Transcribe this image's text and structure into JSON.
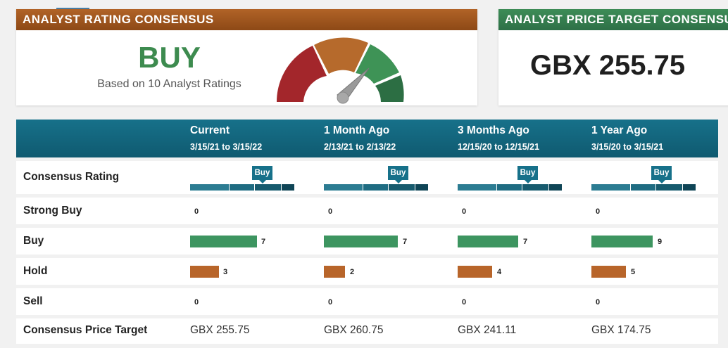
{
  "rating_card": {
    "title": "Analyst Rating Consensus",
    "rating": "BUY",
    "based_on": "Based on 10 Analyst Ratings",
    "gauge_level": "buy"
  },
  "target_card": {
    "title": "Analyst Price Target Consensus",
    "value": "GBX 255.75"
  },
  "table": {
    "columns": [
      {
        "period": "Current",
        "range": "3/15/21 to 3/15/22"
      },
      {
        "period": "1 Month Ago",
        "range": "2/13/21 to 2/13/22"
      },
      {
        "period": "3 Months Ago",
        "range": "12/15/20 to 12/15/21"
      },
      {
        "period": "1 Year Ago",
        "range": "3/15/20 to 3/15/21"
      }
    ],
    "row_labels": {
      "consensus": "Consensus Rating",
      "strong_buy": "Strong Buy",
      "buy": "Buy",
      "hold": "Hold",
      "sell": "Sell",
      "target": "Consensus Price Target"
    },
    "consensus": [
      "Buy",
      "Buy",
      "Buy",
      "Buy"
    ],
    "strong_buy": [
      0,
      0,
      0,
      0
    ],
    "buy": [
      7,
      7,
      7,
      9
    ],
    "hold": [
      3,
      2,
      4,
      5
    ],
    "sell": [
      0,
      0,
      0,
      0
    ],
    "price_target": [
      "GBX 255.75",
      "GBX 260.75",
      "GBX 241.11",
      "GBX 174.75"
    ]
  },
  "colors": {
    "buy_bar": "#3d9560",
    "hold_bar": "#b8652a",
    "header": "#17718a",
    "gauge_sell": "#a3262b",
    "gauge_hold": "#b66a2c",
    "gauge_buy": "#3e9356",
    "gauge_strong_buy": "#2c6e43"
  }
}
